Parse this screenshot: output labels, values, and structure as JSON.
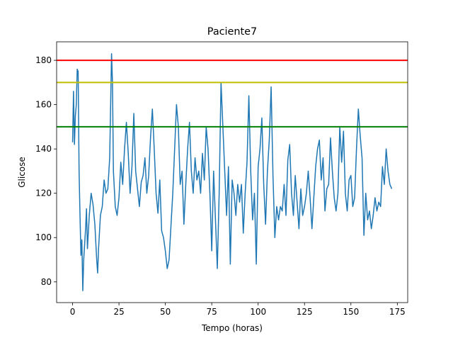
{
  "chart_data": {
    "type": "line",
    "title": "Paciente7",
    "xlabel": "Tempo (horas)",
    "ylabel": "Glicose",
    "xlim": [
      -8.6,
      180.6
    ],
    "ylim": [
      70.65,
      188.35
    ],
    "xticks": [
      0,
      25,
      50,
      75,
      100,
      125,
      150,
      175
    ],
    "yticks": [
      80,
      100,
      120,
      140,
      160,
      180
    ],
    "reference_lines": [
      {
        "value": 180,
        "color": "#ff0000"
      },
      {
        "value": 170,
        "color": "#bfbf00"
      },
      {
        "value": 150,
        "color": "#008000"
      }
    ],
    "series": [
      {
        "color": "#1f77b4",
        "x": [
          0,
          0.5,
          1,
          1.5,
          2,
          2.5,
          3,
          3.5,
          4,
          4.5,
          5,
          5.5,
          6,
          7,
          7.5,
          8,
          9,
          10,
          11,
          12,
          13,
          13.5,
          14,
          15,
          16,
          17,
          18,
          19,
          20,
          21,
          21.5,
          22,
          23,
          24,
          25,
          26,
          27,
          28,
          29,
          30,
          31,
          32,
          33,
          34,
          35,
          36,
          37,
          38,
          39,
          40,
          41,
          42,
          43,
          44,
          45,
          46,
          47,
          48,
          49,
          50,
          51,
          52,
          53,
          54,
          55,
          56,
          57,
          58,
          59,
          60,
          61,
          62,
          63,
          64,
          65,
          66,
          67,
          68,
          69,
          70,
          71,
          72,
          73,
          74,
          75,
          76,
          77,
          78,
          79,
          80,
          81,
          82,
          83,
          84,
          85,
          86,
          87,
          88,
          89,
          90,
          91,
          92,
          93,
          94,
          95,
          96,
          97,
          98,
          99,
          100,
          101,
          102,
          103,
          104,
          105,
          106,
          107,
          108,
          109,
          110,
          111,
          112,
          113,
          114,
          115,
          116,
          117,
          118,
          119,
          120,
          121,
          122,
          123,
          124,
          125,
          126,
          127,
          128,
          129,
          130,
          131,
          132,
          133,
          134,
          135,
          136,
          137,
          138,
          139,
          140,
          141,
          142,
          143,
          144,
          145,
          146,
          147,
          148,
          149,
          150,
          151,
          152,
          153,
          154,
          155,
          156,
          157,
          158,
          159,
          160,
          161,
          162,
          163,
          164,
          165,
          166,
          167,
          168,
          169,
          170,
          171,
          172
        ],
        "values": [
          143,
          166,
          142,
          155,
          160,
          176,
          175,
          130,
          110,
          92,
          99,
          76,
          90,
          104,
          113,
          95,
          110,
          120,
          115,
          106,
          90,
          84,
          95,
          110,
          114,
          126,
          120,
          122,
          136,
          183,
          170,
          130,
          114,
          110,
          118,
          134,
          124,
          140,
          152,
          138,
          120,
          132,
          156,
          130,
          122,
          114,
          125,
          128,
          136,
          120,
          128,
          145,
          158,
          140,
          120,
          111,
          126,
          103,
          100,
          94,
          86,
          90,
          105,
          120,
          140,
          160,
          150,
          124,
          130,
          106,
          124,
          140,
          152,
          130,
          120,
          136,
          126,
          130,
          120,
          138,
          126,
          150,
          140,
          120,
          94,
          130,
          108,
          86,
          120,
          170,
          150,
          130,
          110,
          132,
          88,
          126,
          120,
          110,
          124,
          116,
          124,
          102,
          120,
          134,
          164,
          130,
          108,
          120,
          88,
          132,
          140,
          154,
          124,
          106,
          130,
          144,
          168,
          128,
          100,
          114,
          108,
          114,
          112,
          124,
          110,
          135,
          142,
          120,
          110,
          128,
          116,
          104,
          122,
          110,
          114,
          120,
          130,
          118,
          104,
          118,
          132,
          140,
          144,
          126,
          136,
          112,
          122,
          124,
          145,
          130,
          118,
          112,
          120,
          150,
          134,
          148,
          120,
          112,
          126,
          128,
          114,
          118,
          140,
          158,
          146,
          136,
          101,
          120,
          108,
          112,
          104,
          110,
          118,
          112,
          116,
          114,
          132,
          124,
          140,
          130,
          124,
          122
        ]
      }
    ]
  }
}
